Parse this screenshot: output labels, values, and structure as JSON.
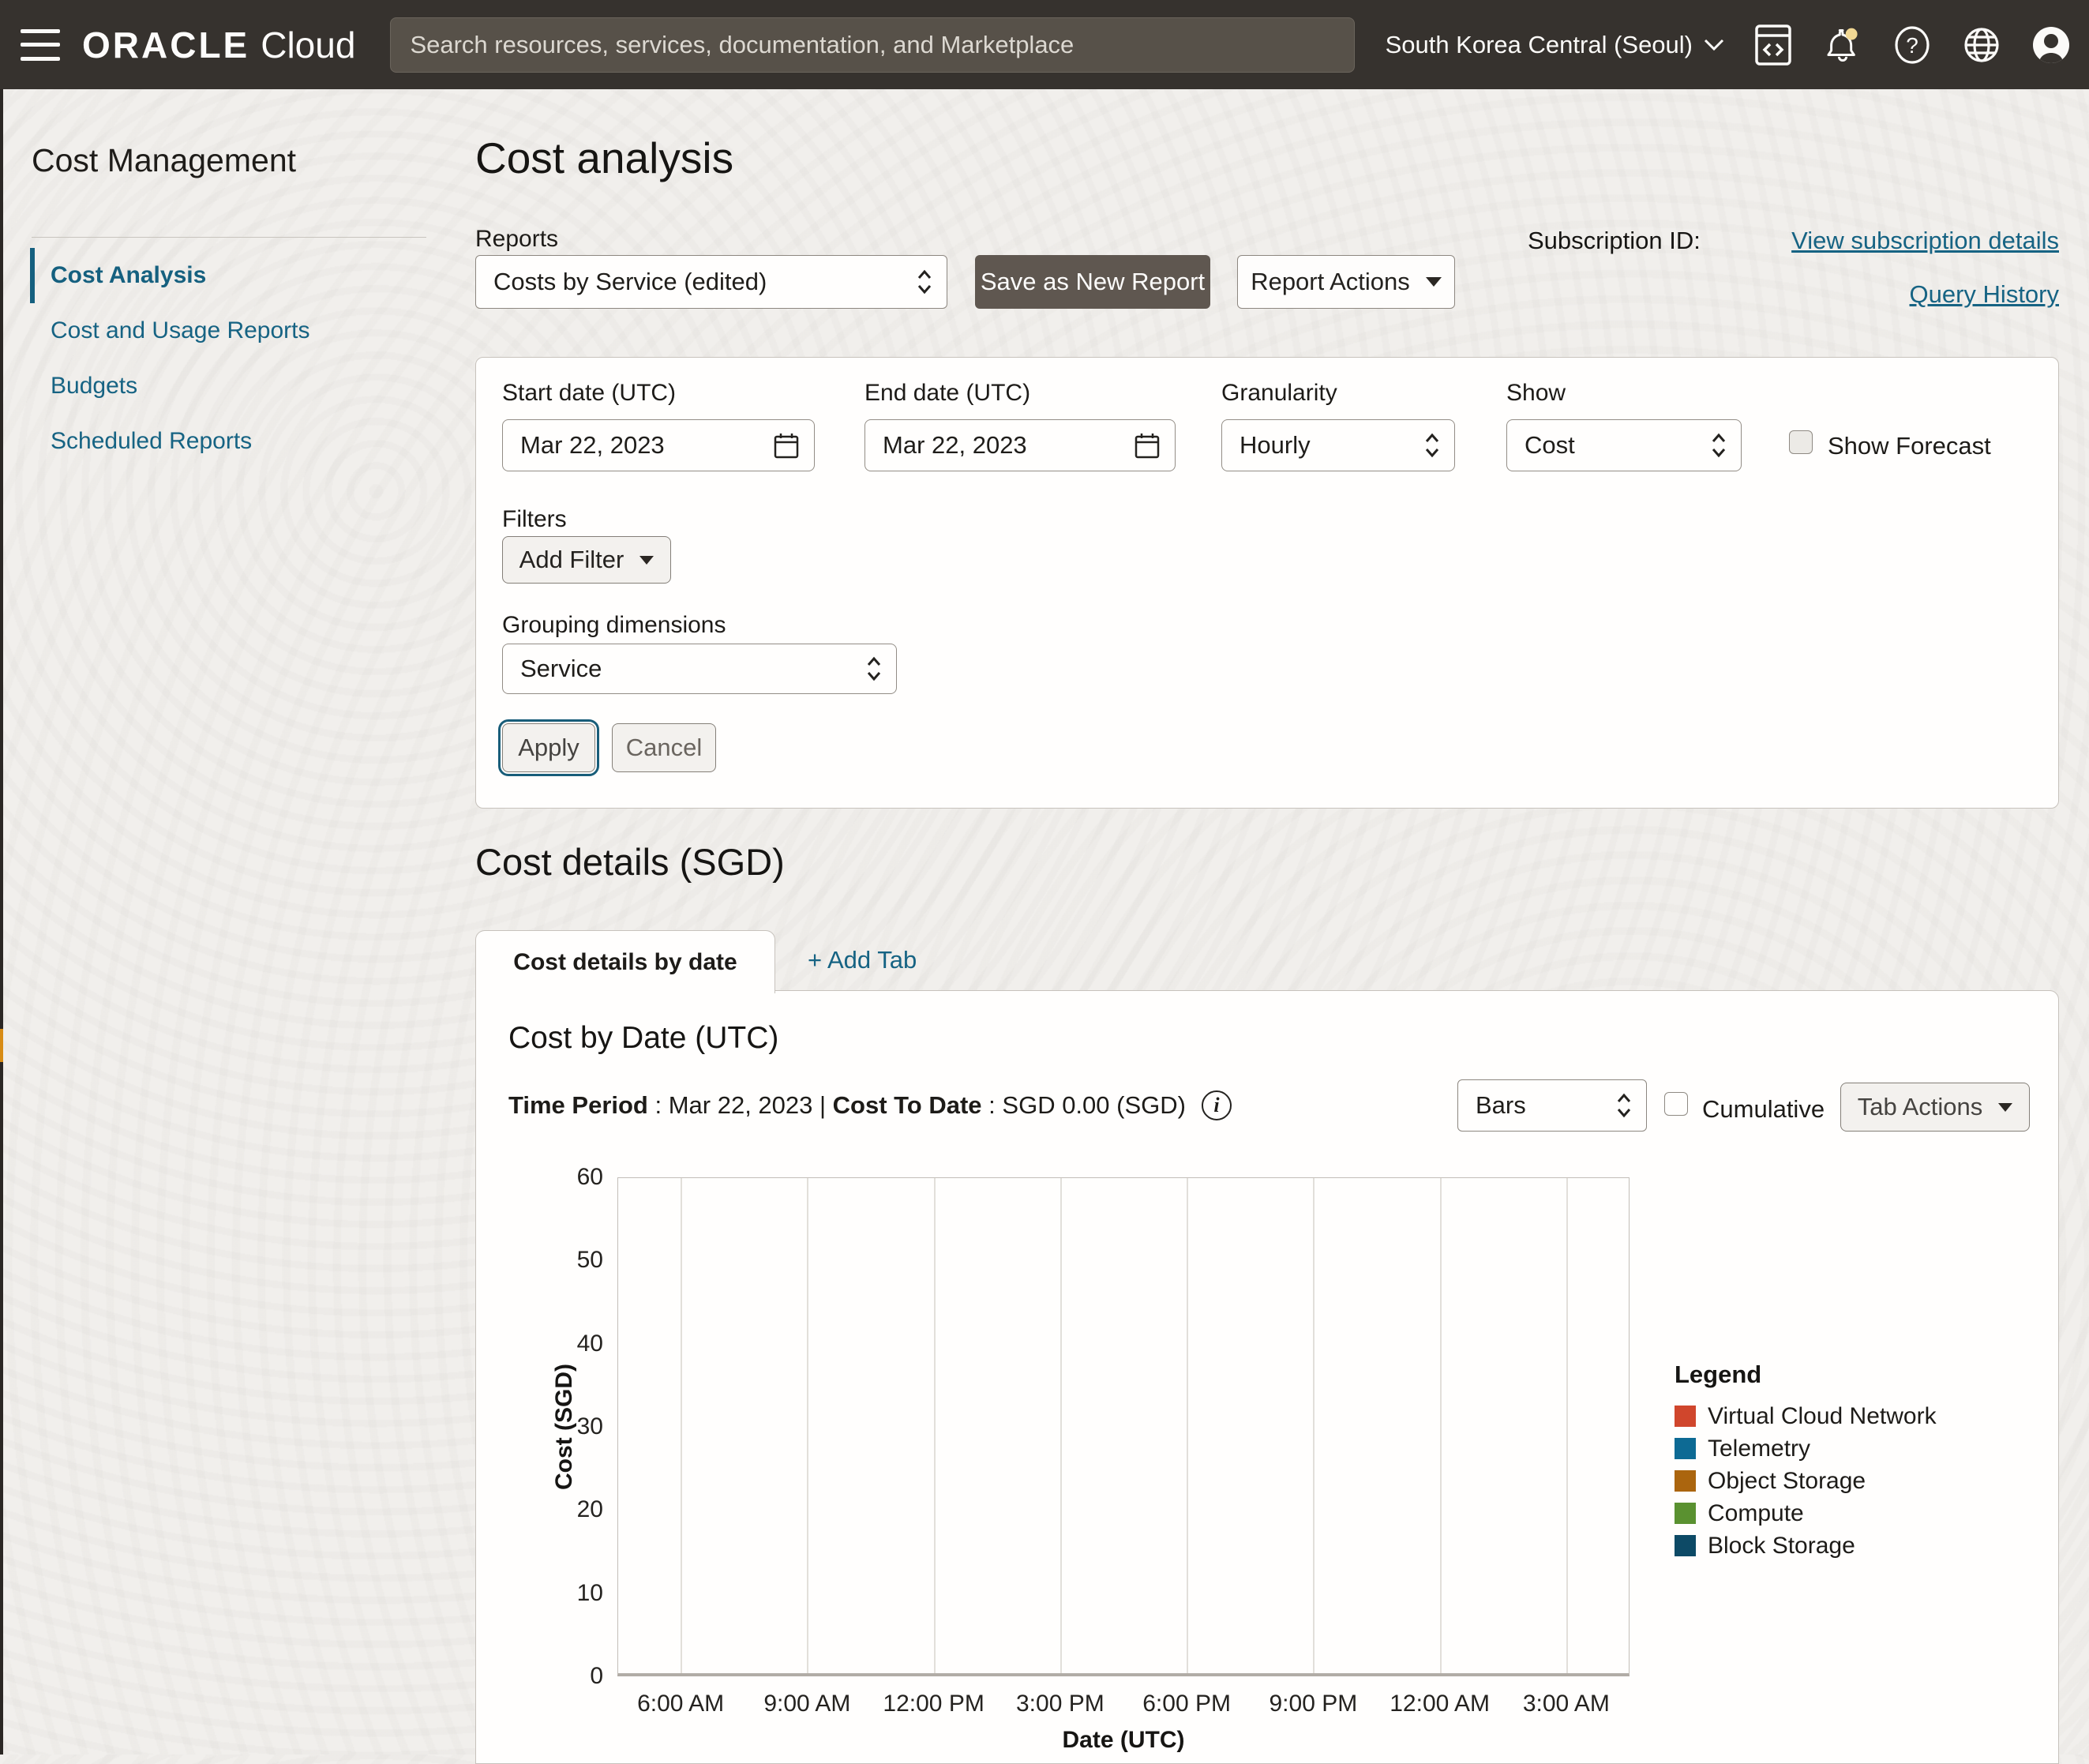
{
  "topbar": {
    "logo_primary": "ORACLE",
    "logo_secondary": "Cloud",
    "search_placeholder": "Search resources, services, documentation, and Marketplace",
    "region_label": "South Korea Central (Seoul)",
    "notification_dot_color": "#f2d893"
  },
  "sidebar": {
    "title": "Cost Management",
    "items": [
      {
        "label": "Cost Analysis",
        "active": true
      },
      {
        "label": "Cost and Usage Reports",
        "active": false
      },
      {
        "label": "Budgets",
        "active": false
      },
      {
        "label": "Scheduled Reports",
        "active": false
      }
    ]
  },
  "header": {
    "title": "Cost analysis",
    "reports_label": "Reports",
    "reports_value": "Costs by Service (edited)",
    "save_as_new_report": "Save as New Report",
    "report_actions": "Report Actions",
    "subscription_id_label": "Subscription ID:",
    "view_subscription_details": "View subscription details",
    "query_history": "Query History"
  },
  "filter_panel": {
    "start_date_label": "Start date (UTC)",
    "start_date_value": "Mar 22, 2023",
    "end_date_label": "End date (UTC)",
    "end_date_value": "Mar 22, 2023",
    "granularity_label": "Granularity",
    "granularity_value": "Hourly",
    "show_label": "Show",
    "show_value": "Cost",
    "show_forecast_label": "Show Forecast",
    "show_forecast_checked": false,
    "filters_label": "Filters",
    "add_filter_label": "Add Filter",
    "grouping_label": "Grouping dimensions",
    "grouping_value": "Service",
    "apply_label": "Apply",
    "cancel_label": "Cancel"
  },
  "details": {
    "heading": "Cost details (SGD)",
    "active_tab": "Cost details by date",
    "add_tab": "+ Add Tab",
    "time_period_label": "Time Period",
    "colon_sep": " : ",
    "time_period_value": "Mar 22, 2023",
    "pipe_sep": " | ",
    "cost_to_date_label": "Cost To Date",
    "cost_to_date_value": "SGD 0.00 (SGD)",
    "chart_type_value": "Bars",
    "cumulative_label": "Cumulative",
    "cumulative_checked": false,
    "tab_actions": "Tab Actions"
  },
  "chart_data": {
    "type": "bar",
    "title": "Cost by Date (UTC)",
    "xlabel": "Date (UTC)",
    "ylabel": "Cost (SGD)",
    "ylim": [
      0,
      60
    ],
    "yticks": [
      0,
      10,
      20,
      30,
      40,
      50,
      60
    ],
    "categories": [
      "6:00 AM",
      "9:00 AM",
      "12:00 PM",
      "3:00 PM",
      "6:00 PM",
      "9:00 PM",
      "12:00 AM",
      "3:00 AM"
    ],
    "grid": "vertical",
    "legend_title": "Legend",
    "legend_position": "right",
    "series": [
      {
        "name": "Virtual Cloud Network",
        "color": "#d0462c",
        "values": [
          0,
          0,
          0,
          0,
          0,
          0,
          0,
          0
        ]
      },
      {
        "name": "Telemetry",
        "color": "#0d6a94",
        "values": [
          0,
          0,
          0,
          0,
          0,
          0,
          0,
          0
        ]
      },
      {
        "name": "Object Storage",
        "color": "#ab650e",
        "values": [
          0,
          0,
          0,
          0,
          0,
          0,
          0,
          0
        ]
      },
      {
        "name": "Compute",
        "color": "#5a9130",
        "values": [
          0,
          0,
          0,
          0,
          0,
          0,
          0,
          0
        ]
      },
      {
        "name": "Block Storage",
        "color": "#0d4a66",
        "values": [
          0,
          0,
          0,
          0,
          0,
          0,
          0,
          0
        ]
      }
    ],
    "total_cost_shown": "SGD 0.00 (SGD)"
  },
  "colors": {
    "topbar_bg": "#36322e",
    "page_bg": "#f1efec",
    "link": "#166383",
    "active_accent": "#15607f",
    "left_strip_marker": "#d88c15",
    "primary_text": "#161513",
    "save_button_bg": "#5f5750"
  }
}
